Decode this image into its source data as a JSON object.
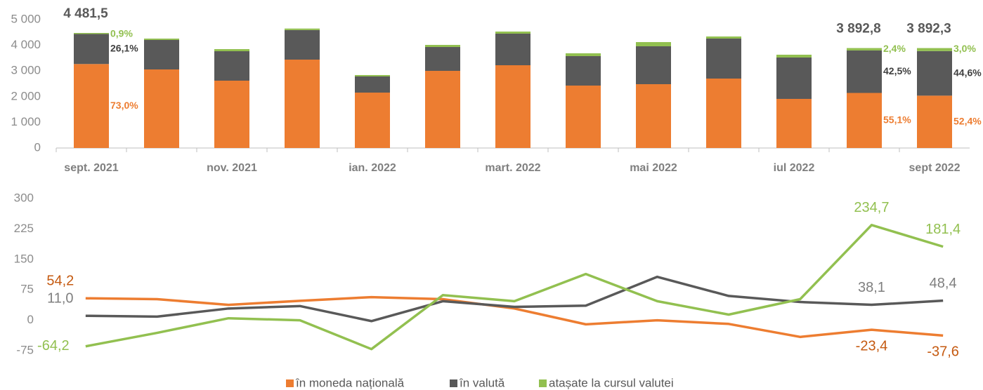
{
  "chart_data": [
    {
      "type": "stacked-bar",
      "categories": [
        "sept. 2021",
        null,
        "nov. 2021",
        null,
        "ian. 2022",
        null,
        "mart. 2022",
        null,
        "mai 2022",
        null,
        "iul 2022",
        null,
        "sept 2022"
      ],
      "series": [
        {
          "color": "#ed7d31",
          "values": [
            3271.5,
            3060,
            2623,
            3443,
            2158,
            3005,
            3224,
            2432,
            2486,
            2705,
            1913,
            2145,
            2039.6
          ],
          "share_labels": [
            "73,0%",
            null,
            null,
            null,
            null,
            null,
            null,
            null,
            null,
            null,
            null,
            "55,1%",
            "52,4%"
          ]
        },
        {
          "color": "#595959",
          "values": [
            1169.7,
            1148,
            1147,
            1150,
            629,
            929,
            1230,
            1147,
            1476,
            1557,
            1612,
            1654.4,
            1736
          ],
          "share_labels": [
            "26,1%",
            null,
            null,
            null,
            null,
            null,
            null,
            null,
            null,
            null,
            null,
            "42,5%",
            "44,6%"
          ]
        },
        {
          "color": "#92c050",
          "values": [
            40.3,
            54,
            82,
            60,
            55,
            82,
            82,
            110,
            164,
            82,
            109,
            93.4,
            116.7
          ],
          "share_labels": [
            "0,9%",
            null,
            null,
            null,
            null,
            null,
            null,
            null,
            null,
            null,
            null,
            "2,4%",
            "3,0%"
          ]
        }
      ],
      "total_labels": [
        "4 481,5",
        null,
        null,
        null,
        null,
        null,
        null,
        null,
        null,
        null,
        null,
        "3 892,8",
        "3 892,3"
      ],
      "ylim": [
        0,
        5000
      ],
      "yticks": [
        0,
        {
          "value": 1000,
          "label": "1 000"
        },
        {
          "value": 2000,
          "label": "2 000"
        },
        {
          "value": 3000,
          "label": "3 000"
        },
        {
          "value": 4000,
          "label": "4 000"
        },
        {
          "value": 5000,
          "label": "5 000"
        }
      ],
      "grid": false
    },
    {
      "type": "line",
      "categories": [
        "sept. 2021",
        null,
        "nov. 2021",
        null,
        "ian. 2022",
        null,
        "mart. 2022",
        null,
        "mai 2022",
        null,
        "iul 2022",
        null,
        "sept 2022"
      ],
      "series": [
        {
          "name": "în moneda națională",
          "color": "#ed7d31",
          "values": [
            54.2,
            52,
            38,
            48,
            57,
            52,
            29,
            -10,
            0,
            -9,
            -41,
            -23.4,
            -37.6
          ],
          "value_labels": [
            "54,2",
            null,
            null,
            null,
            null,
            null,
            null,
            null,
            null,
            null,
            null,
            "-23,4",
            "-37,6"
          ]
        },
        {
          "name": "în valută",
          "color": "#595959",
          "values": [
            11.0,
            9,
            29,
            35,
            -2,
            47,
            33,
            36,
            107,
            60,
            45,
            38.1,
            48.4
          ],
          "value_labels": [
            "11,0",
            null,
            null,
            null,
            null,
            null,
            null,
            null,
            null,
            null,
            null,
            "38,1",
            "48,4"
          ]
        },
        {
          "name": "atașate la cursul valutei",
          "color": "#92c050",
          "values": [
            -64.2,
            -31,
            5,
            0,
            -71,
            62,
            47,
            114,
            47,
            14,
            52,
            234.7,
            181.4
          ],
          "value_labels": [
            "-64,2",
            null,
            null,
            null,
            null,
            null,
            null,
            null,
            null,
            null,
            null,
            "234,7",
            "181,4"
          ]
        }
      ],
      "ylim": [
        -75,
        300
      ],
      "yticks": [
        -75,
        0,
        75,
        150,
        225,
        300
      ],
      "grid": false,
      "legend": "bottom"
    }
  ]
}
